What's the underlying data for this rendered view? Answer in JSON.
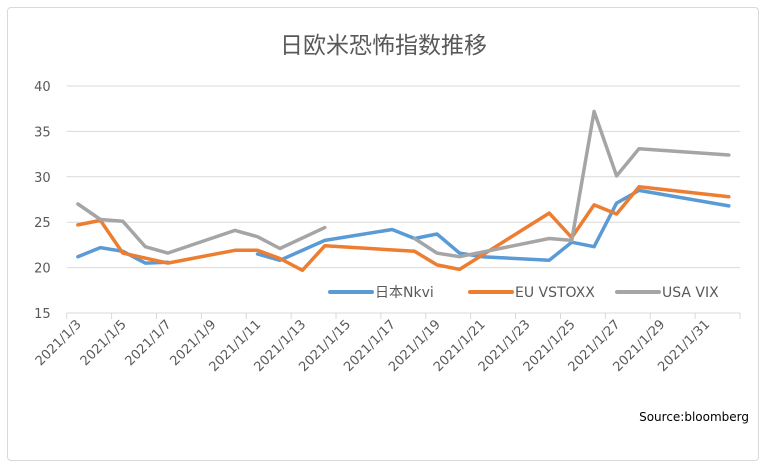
{
  "chart_data": {
    "type": "line",
    "title": "日欧米恐怖指数推移",
    "source": "Source:bloomberg",
    "ylim": [
      15,
      40
    ],
    "yticks": [
      "15",
      "20",
      "25",
      "30",
      "35",
      "40"
    ],
    "xlim": [
      "2021/1/3",
      "2021/2/1"
    ],
    "xticks": [
      "2021/1/3",
      "2021/1/5",
      "2021/1/7",
      "2021/1/9",
      "2021/1/11",
      "2021/1/13",
      "2021/1/15",
      "2021/1/17",
      "2021/1/19",
      "2021/1/21",
      "2021/1/23",
      "2021/1/25",
      "2021/1/27",
      "2021/1/29",
      "2021/1/31"
    ],
    "grid": true,
    "legend": "bottom-right",
    "series": [
      {
        "name": "日本Nkvi",
        "color": "#5b9bd5",
        "points": [
          [
            "2021/1/3",
            21.2
          ],
          [
            "2021/1/4",
            22.2
          ],
          [
            "2021/1/5",
            21.8
          ],
          [
            "2021/1/6",
            20.5
          ],
          [
            "2021/1/7",
            20.6
          ],
          [
            "2021/1/8",
            null
          ],
          [
            "2021/1/11",
            21.5
          ],
          [
            "2021/1/12",
            20.8
          ],
          [
            "2021/1/14",
            23.0
          ],
          [
            "2021/1/17",
            24.2
          ],
          [
            "2021/1/18",
            23.2
          ],
          [
            "2021/1/19",
            23.7
          ],
          [
            "2021/1/20",
            21.6
          ],
          [
            "2021/1/21",
            21.2
          ],
          [
            "2021/1/24",
            20.8
          ],
          [
            "2021/1/25",
            22.8
          ],
          [
            "2021/1/26",
            22.3
          ],
          [
            "2021/1/27",
            27.1
          ],
          [
            "2021/1/28",
            28.5
          ],
          [
            "2021/2/1",
            26.8
          ]
        ]
      },
      {
        "name": "EU VSTOXX",
        "color": "#ed7d31",
        "points": [
          [
            "2021/1/3",
            24.7
          ],
          [
            "2021/1/4",
            25.2
          ],
          [
            "2021/1/5",
            21.6
          ],
          [
            "2021/1/7",
            20.5
          ],
          [
            "2021/1/10",
            21.9
          ],
          [
            "2021/1/11",
            21.9
          ],
          [
            "2021/1/12",
            21.0
          ],
          [
            "2021/1/13",
            19.7
          ],
          [
            "2021/1/14",
            22.4
          ],
          [
            "2021/1/18",
            21.8
          ],
          [
            "2021/1/19",
            20.3
          ],
          [
            "2021/1/20",
            19.8
          ],
          [
            "2021/1/24",
            26.0
          ],
          [
            "2021/1/25",
            23.3
          ],
          [
            "2021/1/26",
            26.9
          ],
          [
            "2021/1/27",
            25.9
          ],
          [
            "2021/1/28",
            28.9
          ],
          [
            "2021/2/1",
            27.8
          ]
        ]
      },
      {
        "name": "USA VIX",
        "color": "#a5a5a5",
        "points": [
          [
            "2021/1/3",
            27.0
          ],
          [
            "2021/1/4",
            25.3
          ],
          [
            "2021/1/5",
            25.1
          ],
          [
            "2021/1/6",
            22.3
          ],
          [
            "2021/1/7",
            21.6
          ],
          [
            "2021/1/10",
            24.1
          ],
          [
            "2021/1/11",
            23.4
          ],
          [
            "2021/1/12",
            22.1
          ],
          [
            "2021/1/14",
            24.4
          ],
          [
            "2021/1/15",
            null
          ],
          [
            "2021/1/18",
            23.2
          ],
          [
            "2021/1/19",
            21.6
          ],
          [
            "2021/1/20",
            21.2
          ],
          [
            "2021/1/24",
            23.2
          ],
          [
            "2021/1/25",
            23.0
          ],
          [
            "2021/1/26",
            37.2
          ],
          [
            "2021/1/27",
            30.1
          ],
          [
            "2021/1/28",
            33.1
          ],
          [
            "2021/2/1",
            32.4
          ]
        ]
      }
    ]
  }
}
